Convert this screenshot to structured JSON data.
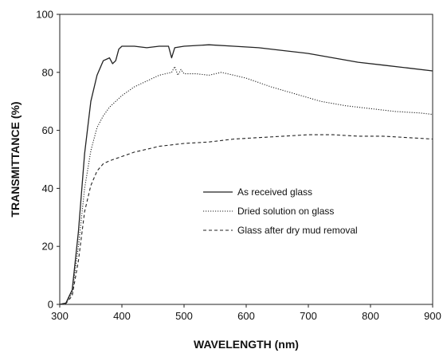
{
  "chart_data": {
    "type": "line",
    "xlabel": "WAVELENGTH (nm)",
    "ylabel": "TRANSMITTANCE (%)",
    "xlim": [
      300,
      900
    ],
    "ylim": [
      0,
      100
    ],
    "xticks": [
      "300",
      "400",
      "500",
      "600",
      "700",
      "800",
      "900"
    ],
    "yticks": [
      "0",
      "20",
      "40",
      "60",
      "80",
      "100"
    ],
    "grid": false,
    "legend_position": "center-right",
    "series": [
      {
        "name": "As received glass",
        "style": "solid",
        "points": [
          [
            300,
            0
          ],
          [
            310,
            0.5
          ],
          [
            320,
            5
          ],
          [
            330,
            25
          ],
          [
            340,
            52
          ],
          [
            350,
            70
          ],
          [
            360,
            79
          ],
          [
            370,
            84
          ],
          [
            380,
            85
          ],
          [
            385,
            83
          ],
          [
            390,
            84
          ],
          [
            395,
            88
          ],
          [
            400,
            89
          ],
          [
            420,
            89
          ],
          [
            440,
            88.5
          ],
          [
            460,
            89
          ],
          [
            475,
            89
          ],
          [
            480,
            85
          ],
          [
            485,
            88.5
          ],
          [
            500,
            89
          ],
          [
            540,
            89.5
          ],
          [
            580,
            89
          ],
          [
            620,
            88.5
          ],
          [
            660,
            87.5
          ],
          [
            700,
            86.5
          ],
          [
            740,
            85
          ],
          [
            780,
            83.5
          ],
          [
            820,
            82.5
          ],
          [
            860,
            81.5
          ],
          [
            900,
            80.5
          ]
        ]
      },
      {
        "name": "Dried solution on glass",
        "style": "dotted",
        "points": [
          [
            300,
            0
          ],
          [
            310,
            0.4
          ],
          [
            320,
            4
          ],
          [
            330,
            20
          ],
          [
            340,
            40
          ],
          [
            350,
            53
          ],
          [
            360,
            61
          ],
          [
            370,
            65
          ],
          [
            380,
            68
          ],
          [
            400,
            72
          ],
          [
            420,
            75
          ],
          [
            440,
            77
          ],
          [
            460,
            79
          ],
          [
            470,
            79.5
          ],
          [
            480,
            80
          ],
          [
            485,
            82
          ],
          [
            490,
            79
          ],
          [
            495,
            81
          ],
          [
            500,
            79.5
          ],
          [
            520,
            79.5
          ],
          [
            540,
            79
          ],
          [
            560,
            80
          ],
          [
            580,
            79
          ],
          [
            600,
            78
          ],
          [
            640,
            75
          ],
          [
            680,
            72.5
          ],
          [
            720,
            70
          ],
          [
            760,
            68.5
          ],
          [
            800,
            67.5
          ],
          [
            840,
            66.5
          ],
          [
            880,
            66
          ],
          [
            900,
            65.5
          ]
        ]
      },
      {
        "name": "Glass after dry mud removal",
        "style": "dashed",
        "points": [
          [
            300,
            0
          ],
          [
            310,
            0.3
          ],
          [
            320,
            3
          ],
          [
            330,
            15
          ],
          [
            340,
            32
          ],
          [
            350,
            41
          ],
          [
            360,
            46
          ],
          [
            370,
            48.5
          ],
          [
            380,
            49.5
          ],
          [
            400,
            51
          ],
          [
            420,
            52.5
          ],
          [
            440,
            53.5
          ],
          [
            460,
            54.5
          ],
          [
            480,
            55
          ],
          [
            500,
            55.5
          ],
          [
            540,
            56
          ],
          [
            580,
            57
          ],
          [
            620,
            57.5
          ],
          [
            660,
            58
          ],
          [
            700,
            58.5
          ],
          [
            740,
            58.5
          ],
          [
            780,
            58
          ],
          [
            820,
            58
          ],
          [
            860,
            57.5
          ],
          [
            900,
            57
          ]
        ]
      }
    ]
  }
}
